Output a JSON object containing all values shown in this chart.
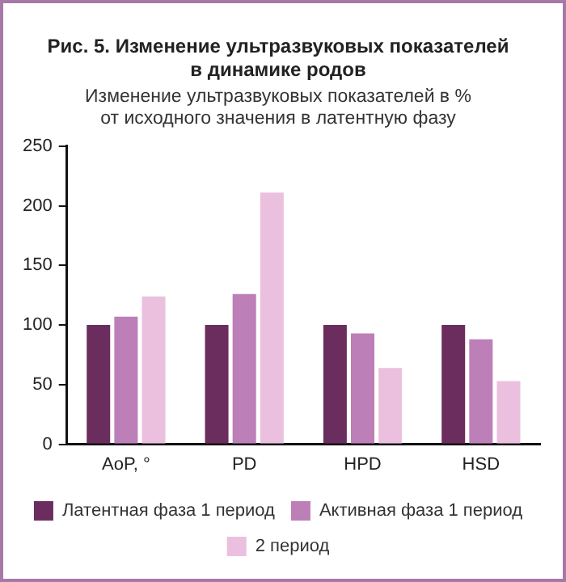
{
  "chart_data": {
    "type": "bar",
    "title": "Рис. 5. Изменение ультразвуковых показателей в динамике родов",
    "subtitle": "Изменение ультразвуковых показателей в % от исходного значения в латентную фазу",
    "categories": [
      "AoP, °",
      "PD",
      "HPD",
      "HSD"
    ],
    "series": [
      {
        "name": "Латентная фаза 1 период",
        "color": "#6b2d5e",
        "values": [
          100,
          100,
          100,
          100
        ]
      },
      {
        "name": "Активная фаза 1 период",
        "color": "#bd7fb8",
        "values": [
          107,
          126,
          93,
          88
        ]
      },
      {
        "name": "2 период",
        "color": "#ebc0de",
        "values": [
          124,
          211,
          64,
          53
        ]
      }
    ],
    "ylim": [
      0,
      250
    ],
    "yticks": [
      0,
      50,
      100,
      150,
      200,
      250
    ],
    "grid": false,
    "legend": "bottom"
  }
}
